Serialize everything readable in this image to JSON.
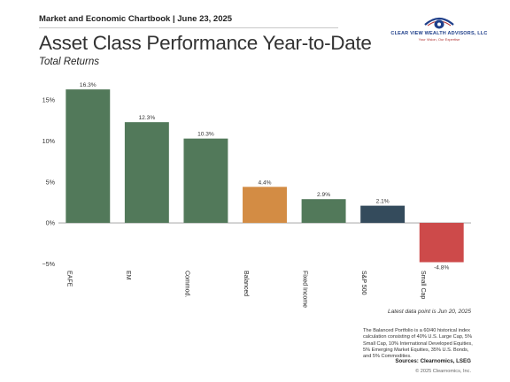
{
  "header": {
    "label": "Market and Economic Chartbook | June 23, 2025"
  },
  "title": "Asset Class Performance Year-to-Date",
  "subtitle": "Total Returns",
  "logo": {
    "name": "CLEAR VIEW WEALTH ADVISORS, LLC",
    "tagline": "Your Vision, Our Expertise",
    "colors": {
      "blue": "#1f3f8a",
      "red": "#b03030"
    }
  },
  "chart_data": {
    "type": "bar",
    "categories": [
      "EAFE",
      "EM",
      "Commod.",
      "Balanced",
      "Fixed Income",
      "S&P 500",
      "Small Cap"
    ],
    "values": [
      16.3,
      12.3,
      10.3,
      4.4,
      2.9,
      2.1,
      -4.8
    ],
    "value_labels": [
      "16.3%",
      "12.3%",
      "10.3%",
      "4.4%",
      "2.9%",
      "2.1%",
      "-4.8%"
    ],
    "colors": [
      "#52795a",
      "#52795a",
      "#52795a",
      "#d38c44",
      "#52795a",
      "#344b5c",
      "#cd4a4a"
    ],
    "yticks": [
      15,
      10,
      5,
      0,
      -5
    ],
    "ytick_labels": [
      "15%",
      "10%",
      "5%",
      "0%",
      "−5%"
    ],
    "ylim": [
      -5.5,
      17.5
    ],
    "grid": false
  },
  "footer": {
    "latest": "Latest data point is Jun 20, 2025",
    "note": "The Balanced Portfolio is a 60/40 historical index calculation consisting of 40% U.S. Large Cap, 5% Small Cap, 10% International Developed Equities, 5% Emerging Market Equities, 35% U.S. Bonds, and 5% Commodities.",
    "sources": "Sources: Clearnomics, LSEG",
    "copyright": "© 2025 Clearnomics, Inc."
  }
}
